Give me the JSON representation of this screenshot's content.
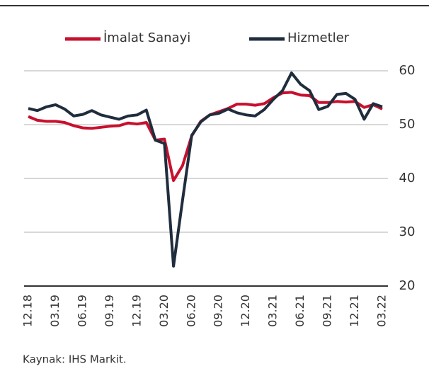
{
  "chart_data": {
    "type": "line",
    "categories": [
      "12.18",
      null,
      null,
      "03.19",
      null,
      null,
      "06.19",
      null,
      null,
      "09.19",
      null,
      null,
      "12.19",
      null,
      null,
      "03.20",
      null,
      null,
      "06.20",
      null,
      null,
      "09.20",
      null,
      null,
      "12.20",
      null,
      null,
      "03.21",
      null,
      null,
      "06.21",
      null,
      null,
      "09.21",
      null,
      null,
      "12.21",
      null,
      null,
      "03.22"
    ],
    "series": [
      {
        "name": "İmalat Sanayi",
        "color": "#c8102e",
        "values": [
          51.5,
          50.8,
          50.6,
          50.6,
          50.4,
          49.8,
          49.4,
          49.3,
          49.5,
          49.7,
          49.8,
          50.3,
          50.1,
          50.4,
          47.1,
          47.3,
          39.6,
          42.4,
          47.9,
          50.6,
          51.8,
          52.4,
          53.0,
          53.8,
          53.8,
          53.6,
          53.9,
          55.0,
          55.9,
          56.0,
          55.5,
          55.4,
          54.1,
          54.1,
          54.3,
          54.2,
          54.3,
          53.2,
          53.7,
          52.9
        ]
      },
      {
        "name": "Hizmetler",
        "color": "#1f2d3d",
        "values": [
          53.0,
          52.6,
          53.3,
          53.7,
          52.9,
          51.6,
          51.9,
          52.6,
          51.8,
          51.4,
          51.0,
          51.6,
          51.8,
          52.7,
          47.1,
          46.5,
          23.7,
          36.0,
          48.0,
          50.5,
          51.8,
          52.1,
          52.9,
          52.2,
          51.8,
          51.6,
          52.8,
          54.7,
          56.3,
          59.6,
          57.5,
          56.3,
          52.8,
          53.4,
          55.6,
          55.8,
          54.7,
          51.0,
          53.9,
          53.3
        ]
      }
    ],
    "ylim": [
      20,
      60
    ],
    "yticks": [
      20,
      30,
      40,
      50,
      60
    ],
    "grid": true,
    "source": "Kaynak: IHS Markit."
  }
}
